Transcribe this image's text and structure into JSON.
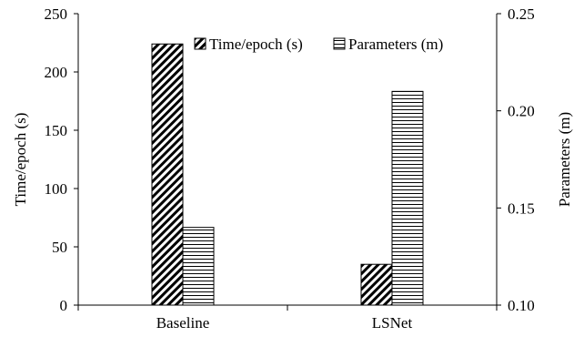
{
  "chart_data": {
    "type": "bar",
    "categories": [
      "Baseline",
      "LSNet"
    ],
    "series": [
      {
        "name": "Time/epoch (s)",
        "axis": "left",
        "pattern": "diagonal-hatch",
        "values": [
          224,
          35
        ]
      },
      {
        "name": "Parameters (m)",
        "axis": "right",
        "pattern": "horizontal-lines",
        "values": [
          0.14,
          0.21
        ]
      }
    ],
    "y_left": {
      "label": "Time/epoch (s)",
      "range": [
        0,
        250
      ],
      "ticks": [
        "0",
        "50",
        "100",
        "150",
        "200",
        "250"
      ]
    },
    "y_right": {
      "label": "Parameters (m)",
      "range": [
        0.1,
        0.25
      ],
      "ticks": [
        "0.10",
        "0.15",
        "0.20",
        "0.25"
      ]
    },
    "grid": false,
    "legend": "top-right",
    "colors": {
      "line": "#000000",
      "fill": "#ffffff"
    }
  }
}
